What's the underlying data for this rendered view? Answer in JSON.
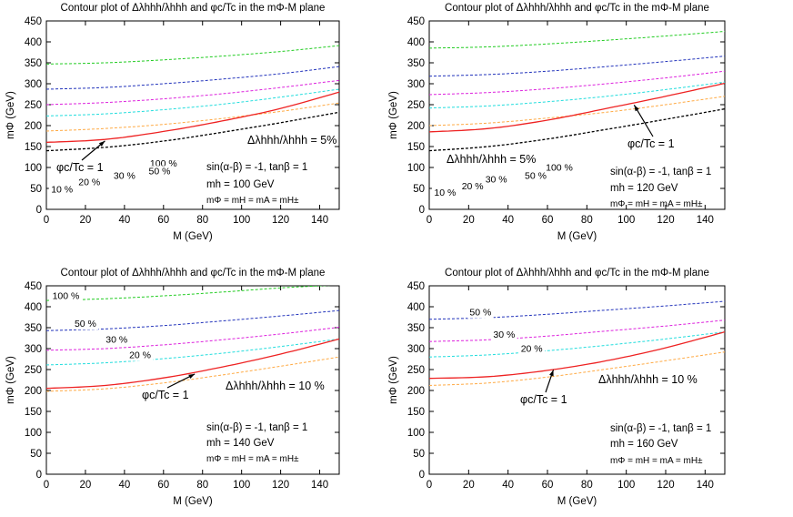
{
  "colors": {
    "100": "#22cc22",
    "50": "#2233bb",
    "30": "#dd22dd",
    "20": "#22dddd",
    "10": "#ffaa44",
    "phi": "#ee2222",
    "lambda": "#000000"
  },
  "chart_data": [
    {
      "type": "line",
      "title": "Contour plot of Δλhhh/λhhh and φc/Tc in the mΦ-M plane",
      "xlabel": "M (GeV)",
      "ylabel": "mΦ (GeV)",
      "xlim": [
        0,
        150
      ],
      "ylim": [
        0,
        450
      ],
      "xticks": [
        "0",
        "20",
        "40",
        "60",
        "80",
        "100",
        "120",
        "140"
      ],
      "yticks": [
        "0",
        "50",
        "100",
        "150",
        "200",
        "250",
        "300",
        "350",
        "400",
        "450"
      ],
      "x": [
        0,
        30,
        60,
        90,
        120,
        150
      ],
      "series": [
        {
          "name": "100 %",
          "key": "100",
          "values": [
            347,
            350,
            357,
            366,
            377,
            391
          ],
          "label_at": [
            60,
            102
          ]
        },
        {
          "name": "50 %",
          "key": "50",
          "values": [
            287,
            291,
            300,
            311,
            324,
            341
          ],
          "label_at": [
            58,
            84
          ]
        },
        {
          "name": "30 %",
          "key": "30",
          "values": [
            250,
            255,
            264,
            276,
            291,
            308
          ],
          "label_at": [
            40,
            73
          ]
        },
        {
          "name": "20 %",
          "key": "20",
          "values": [
            223,
            228,
            238,
            251,
            268,
            287
          ],
          "label_at": [
            22,
            58
          ]
        },
        {
          "name": "10 %",
          "key": "10",
          "values": [
            187,
            193,
            203,
            217,
            234,
            254
          ],
          "label_at": [
            8,
            40
          ]
        },
        {
          "name": "φc/Tc = 1",
          "key": "phi",
          "values": [
            160,
            167,
            186,
            211,
            241,
            280
          ]
        },
        {
          "name": "Δλhhh/λhhh = 5%",
          "key": "lambda",
          "values": [
            140,
            148,
            163,
            184,
            207,
            232
          ]
        }
      ],
      "annotations": {
        "phi_label": "φc/Tc = 1",
        "lambda_label": "Δλhhh/λhhh = 5%",
        "params": [
          "sin(α-β) = -1, tanβ = 1",
          "mh = 100 GeV",
          "mΦ = mH = mA = mH±"
        ]
      }
    },
    {
      "type": "line",
      "title": "Contour plot of Δλhhh/λhhh and φc/Tc in the mΦ-M plane",
      "xlabel": "M (GeV)",
      "ylabel": "mΦ (GeV)",
      "xlim": [
        0,
        150
      ],
      "ylim": [
        0,
        450
      ],
      "xticks": [
        "0",
        "20",
        "40",
        "60",
        "80",
        "100",
        "120",
        "140"
      ],
      "yticks": [
        "0",
        "50",
        "100",
        "150",
        "200",
        "250",
        "300",
        "350",
        "400",
        "450"
      ],
      "x": [
        0,
        30,
        60,
        90,
        120,
        150
      ],
      "series": [
        {
          "name": "100 %",
          "key": "100",
          "values": [
            385,
            388,
            395,
            404,
            414,
            425
          ],
          "label_at": [
            66,
            92
          ]
        },
        {
          "name": "50 %",
          "key": "50",
          "values": [
            318,
            322,
            330,
            341,
            353,
            366
          ],
          "label_at": [
            54,
            73
          ]
        },
        {
          "name": "30 %",
          "key": "30",
          "values": [
            274,
            279,
            288,
            300,
            314,
            330
          ],
          "label_at": [
            34,
            64
          ]
        },
        {
          "name": "20 %",
          "key": "20",
          "values": [
            242,
            247,
            257,
            270,
            286,
            304
          ],
          "label_at": [
            22,
            48
          ]
        },
        {
          "name": "10 %",
          "key": "10",
          "values": [
            200,
            206,
            218,
            232,
            250,
            270
          ],
          "label_at": [
            8,
            33
          ]
        },
        {
          "name": "φc/Tc = 1",
          "key": "phi",
          "values": [
            185,
            193,
            213,
            241,
            270,
            301
          ]
        },
        {
          "name": "Δλhhh/λhhh = 5%",
          "key": "lambda",
          "values": [
            140,
            150,
            168,
            191,
            215,
            240
          ]
        }
      ],
      "annotations": {
        "phi_label": "φc/Tc = 1",
        "lambda_label": "Δλhhh/λhhh = 5%",
        "params": [
          "sin(α-β) = -1, tanβ = 1",
          "mh = 120 GeV",
          "mΦ = mH = mA = mH±"
        ]
      }
    },
    {
      "type": "line",
      "title": "Contour plot of Δλhhh/λhhh and φc/Tc in the mΦ-M plane",
      "xlabel": "M (GeV)",
      "ylabel": "mΦ (GeV)",
      "xlim": [
        0,
        150
      ],
      "ylim": [
        0,
        450
      ],
      "xticks": [
        "0",
        "20",
        "40",
        "60",
        "80",
        "100",
        "120",
        "140"
      ],
      "yticks": [
        "0",
        "50",
        "100",
        "150",
        "200",
        "250",
        "300",
        "350",
        "400",
        "450"
      ],
      "x": [
        0,
        30,
        60,
        90,
        120,
        150
      ],
      "series": [
        {
          "name": "100 %",
          "key": "100",
          "values": [
            415,
            419,
            426,
            435,
            445,
            452
          ],
          "label_at": [
            10,
            418
          ]
        },
        {
          "name": "50 %",
          "key": "50",
          "values": [
            343,
            347,
            355,
            366,
            378,
            391
          ],
          "label_at": [
            20,
            352
          ]
        },
        {
          "name": "30 %",
          "key": "30",
          "values": [
            296,
            300,
            309,
            321,
            335,
            351
          ],
          "label_at": [
            36,
            314
          ]
        },
        {
          "name": "20 %",
          "key": "20",
          "values": [
            261,
            266,
            276,
            289,
            305,
            323
          ],
          "label_at": [
            48,
            277
          ]
        },
        {
          "name": "φc/Tc = 1",
          "key": "phi",
          "values": [
            205,
            212,
            230,
            256,
            287,
            323
          ]
        },
        {
          "name": "Δλhhh/λhhh = 10 %",
          "key": "10",
          "values": [
            198,
            204,
            218,
            237,
            258,
            280
          ]
        }
      ],
      "annotations": {
        "phi_label": "φc/Tc = 1",
        "lambda_label": "Δλhhh/λhhh = 10 %",
        "params": [
          "sin(α-β) = -1, tanβ = 1",
          "mh = 140 GeV",
          "mΦ = mH = mA = mH±"
        ]
      }
    },
    {
      "type": "line",
      "title": "Contour plot of Δλhhh/λhhh and φc/Tc in the mΦ-M plane",
      "xlabel": "M (GeV)",
      "ylabel": "mΦ (GeV)",
      "xlim": [
        0,
        150
      ],
      "ylim": [
        0,
        450
      ],
      "xticks": [
        "0",
        "20",
        "40",
        "60",
        "80",
        "100",
        "120",
        "140"
      ],
      "yticks": [
        "0",
        "50",
        "100",
        "150",
        "200",
        "250",
        "300",
        "350",
        "400",
        "450"
      ],
      "x": [
        0,
        30,
        60,
        90,
        120,
        150
      ],
      "series": [
        {
          "name": "50 %",
          "key": "50",
          "values": [
            370,
            374,
            382,
            392,
            402,
            413
          ],
          "label_at": [
            26,
            379
          ]
        },
        {
          "name": "30 %",
          "key": "30",
          "values": [
            317,
            321,
            330,
            342,
            354,
            368
          ],
          "label_at": [
            38,
            326
          ]
        },
        {
          "name": "20 %",
          "key": "20",
          "values": [
            280,
            285,
            295,
            308,
            323,
            340
          ],
          "label_at": [
            52,
            292
          ]
        },
        {
          "name": "φc/Tc = 1",
          "key": "phi",
          "values": [
            229,
            233,
            248,
            271,
            302,
            340
          ]
        },
        {
          "name": "Δλhhh/λhhh = 10 %",
          "key": "10",
          "values": [
            212,
            218,
            232,
            251,
            271,
            292
          ]
        }
      ],
      "annotations": {
        "phi_label": "φc/Tc = 1",
        "lambda_label": "Δλhhh/λhhh = 10 %",
        "params": [
          "sin(α-β) = -1, tanβ = 1",
          "mh = 160 GeV",
          "mΦ = mH = mA = mH±"
        ]
      }
    }
  ]
}
